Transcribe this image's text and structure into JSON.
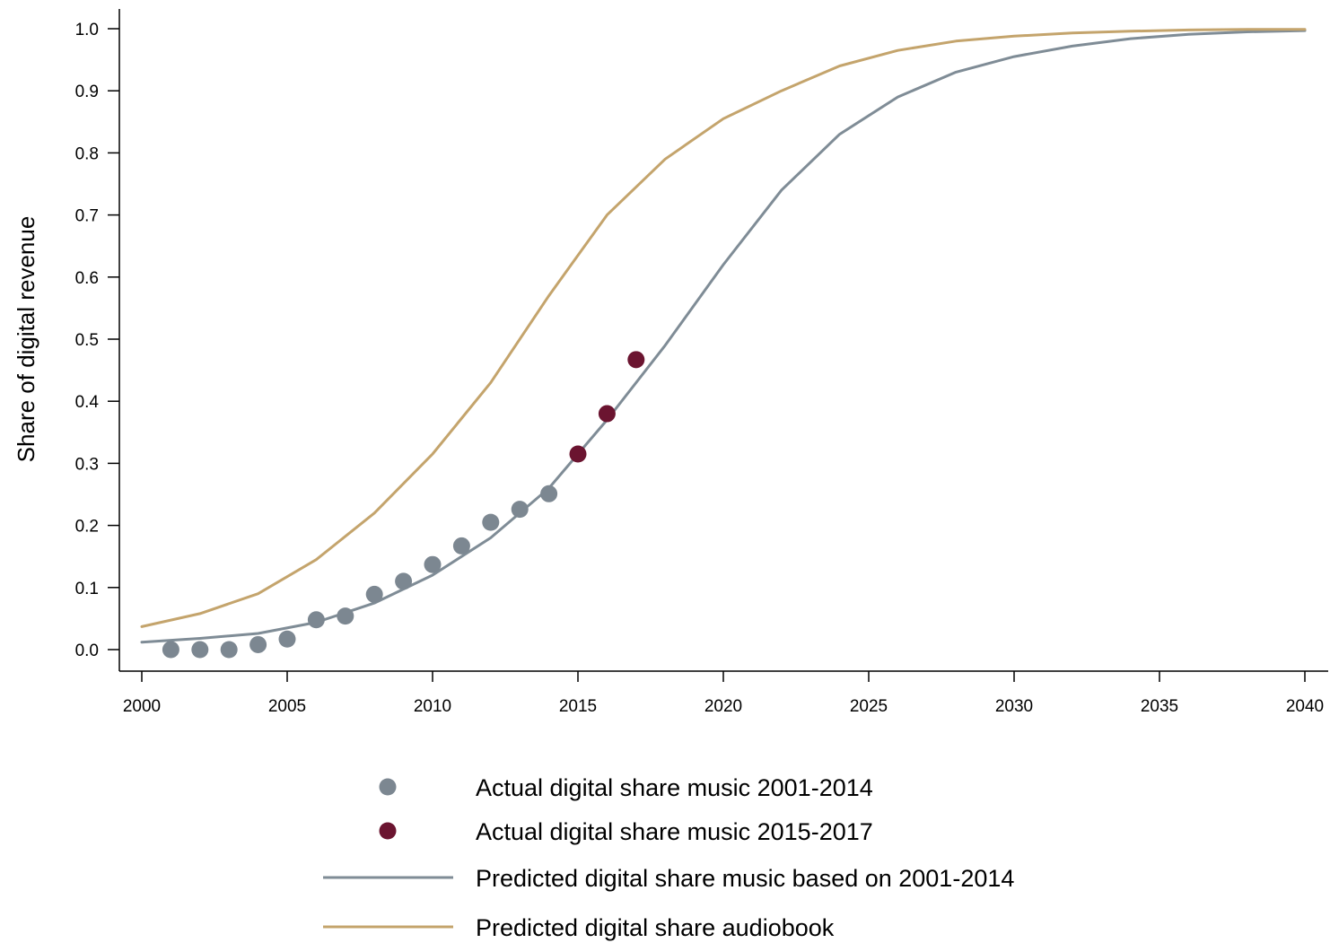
{
  "chart_data": {
    "type": "scatter",
    "title": "",
    "xlabel": "",
    "ylabel": "Share of digital  revenue",
    "xlim": [
      2000,
      2040
    ],
    "ylim": [
      0.0,
      1.0
    ],
    "x_ticks": [
      "2000",
      "2005",
      "2010",
      "2015",
      "2020",
      "2025",
      "2030",
      "2035",
      "2040"
    ],
    "y_ticks": [
      "0.0",
      "0.1",
      "0.2",
      "0.3",
      "0.4",
      "0.5",
      "0.6",
      "0.7",
      "0.8",
      "0.9",
      "1.0"
    ],
    "grid": false,
    "legend_position": "bottom",
    "series": [
      {
        "name": "Actual digital share music 2001-2014",
        "kind": "points",
        "color": "#7c8791",
        "x": [
          2001,
          2002,
          2003,
          2004,
          2005,
          2006,
          2007,
          2008,
          2009,
          2010,
          2011,
          2012,
          2013,
          2014
        ],
        "y": [
          0.0,
          0.0,
          0.0,
          0.008,
          0.017,
          0.048,
          0.054,
          0.089,
          0.11,
          0.137,
          0.167,
          0.205,
          0.226,
          0.251
        ]
      },
      {
        "name": "Actual digital share music 2015-2017",
        "kind": "points",
        "color": "#6b1430",
        "x": [
          2015,
          2016,
          2017
        ],
        "y": [
          0.315,
          0.38,
          0.467
        ]
      },
      {
        "name": "Predicted digital share music based on 2001-2014",
        "kind": "line",
        "color": "#7f8c96",
        "x": [
          2000,
          2002,
          2004,
          2006,
          2008,
          2010,
          2012,
          2014,
          2016,
          2018,
          2020,
          2022,
          2024,
          2026,
          2028,
          2030,
          2032,
          2034,
          2036,
          2038,
          2040
        ],
        "y": [
          0.012,
          0.018,
          0.026,
          0.044,
          0.075,
          0.12,
          0.18,
          0.26,
          0.37,
          0.49,
          0.62,
          0.74,
          0.83,
          0.89,
          0.93,
          0.955,
          0.972,
          0.984,
          0.991,
          0.995,
          0.997
        ]
      },
      {
        "name": "Predicted digital share audiobook",
        "kind": "line",
        "color": "#c4a46c",
        "x": [
          2000,
          2002,
          2004,
          2006,
          2008,
          2010,
          2012,
          2014,
          2016,
          2018,
          2020,
          2022,
          2024,
          2026,
          2028,
          2030,
          2032,
          2034,
          2036,
          2038,
          2040
        ],
        "y": [
          0.037,
          0.058,
          0.09,
          0.145,
          0.22,
          0.315,
          0.43,
          0.57,
          0.7,
          0.79,
          0.855,
          0.9,
          0.94,
          0.965,
          0.98,
          0.988,
          0.993,
          0.996,
          0.998,
          0.999,
          0.999
        ]
      }
    ]
  }
}
